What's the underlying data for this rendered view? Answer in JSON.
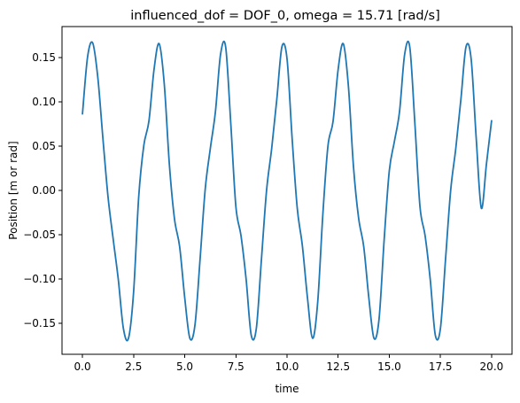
{
  "chart_data": {
    "type": "line",
    "title": "influenced_dof = DOF_0, omega = 15.71 [rad/s]",
    "xlabel": "time",
    "ylabel": "Position [m or rad]",
    "xlim": [
      -1.0,
      21.0
    ],
    "ylim": [
      -0.185,
      0.185
    ],
    "xticks": [
      0.0,
      2.5,
      5.0,
      7.5,
      10.0,
      12.5,
      15.0,
      17.5,
      20.0
    ],
    "xtick_labels": [
      "0.0",
      "2.5",
      "5.0",
      "7.5",
      "10.0",
      "12.5",
      "15.0",
      "17.5",
      "20.0"
    ],
    "yticks": [
      -0.15,
      -0.1,
      -0.05,
      0.0,
      0.05,
      0.1,
      0.15
    ],
    "ytick_labels": [
      "−0.15",
      "−0.10",
      "−0.05",
      "0.00",
      "0.05",
      "0.10",
      "0.15"
    ],
    "grid": false,
    "series": [
      {
        "color": "#1f77b4",
        "x": [
          0.0,
          0.25,
          0.5,
          0.75,
          1.0,
          1.25,
          1.5,
          1.75,
          2.0,
          2.25,
          2.5,
          2.75,
          3.0,
          3.25,
          3.5,
          3.75,
          4.0,
          4.25,
          4.5,
          4.75,
          5.0,
          5.25,
          5.5,
          5.75,
          6.0,
          6.25,
          6.5,
          6.75,
          7.0,
          7.25,
          7.5,
          7.75,
          8.0,
          8.25,
          8.5,
          8.75,
          9.0,
          9.25,
          9.5,
          9.75,
          10.0,
          10.25,
          10.5,
          10.75,
          11.0,
          11.25,
          11.5,
          11.75,
          12.0,
          12.25,
          12.5,
          12.75,
          13.0,
          13.25,
          13.5,
          13.75,
          14.0,
          14.25,
          14.5,
          14.75,
          15.0,
          15.25,
          15.5,
          15.75,
          16.0,
          16.25,
          16.5,
          16.75,
          17.0,
          17.25,
          17.5,
          17.75,
          18.0,
          18.25,
          18.5,
          18.75,
          19.0,
          19.25,
          19.5,
          19.75,
          20.0
        ],
        "values": [
          0.0864,
          0.1508,
          0.1665,
          0.1276,
          0.0586,
          -0.0073,
          -0.0547,
          -0.1002,
          -0.1557,
          -0.1669,
          -0.1147,
          -0.0071,
          0.0509,
          0.0785,
          0.1368,
          0.1656,
          0.1199,
          0.0288,
          -0.0324,
          -0.0634,
          -0.1213,
          -0.1669,
          -0.1519,
          -0.0776,
          0.0013,
          0.0473,
          0.0889,
          0.1535,
          0.162,
          0.0758,
          -0.0183,
          -0.051,
          -0.1002,
          -0.1634,
          -0.1557,
          -0.0776,
          0.0,
          0.0473,
          0.1026,
          0.1621,
          0.1487,
          0.0586,
          -0.02,
          -0.0624,
          -0.1213,
          -0.1669,
          -0.126,
          -0.0275,
          0.05,
          0.0779,
          0.1368,
          0.1656,
          0.118,
          0.0265,
          -0.0313,
          -0.0634,
          -0.1213,
          -0.1669,
          -0.145,
          -0.0553,
          0.0221,
          0.0554,
          0.0889,
          0.1535,
          0.162,
          0.0758,
          -0.0183,
          -0.051,
          -0.1002,
          -0.1634,
          -0.1557,
          -0.0776,
          0.0,
          0.0473,
          0.1026,
          0.1621,
          0.1487,
          0.0586,
          -0.02,
          0.03,
          0.0787
        ]
      }
    ]
  }
}
